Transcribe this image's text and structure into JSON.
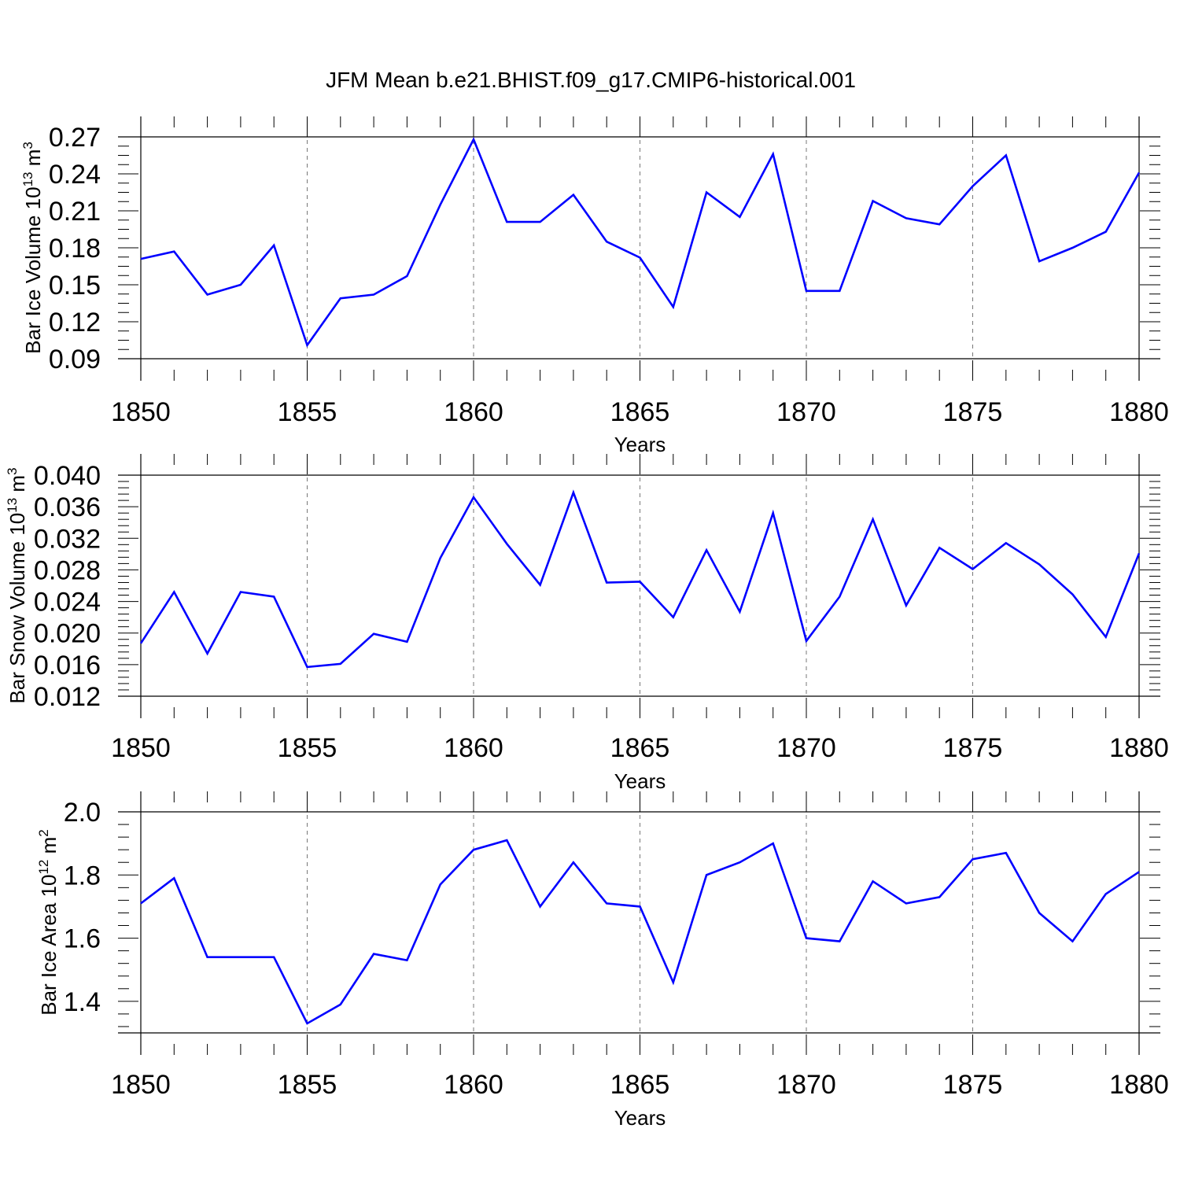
{
  "title": "JFM Mean b.e21.BHIST.f09_g17.CMIP6-historical.001",
  "line_color": "#0000ff",
  "chart_data": [
    {
      "type": "line",
      "xlabel": "Years",
      "ylabel": {
        "prefix": "Bar Ice Volume 10",
        "exp": "13",
        "unit": " m",
        "unit_exp": "3"
      },
      "xlim": [
        1850,
        1880
      ],
      "ylim": [
        0.09,
        0.27
      ],
      "xticks": [
        "1850",
        "1855",
        "1860",
        "1865",
        "1870",
        "1875",
        "1880"
      ],
      "yticks": [
        "0.09",
        "0.12",
        "0.15",
        "0.18",
        "0.21",
        "0.24",
        "0.27"
      ],
      "x": [
        1850,
        1851,
        1852,
        1853,
        1854,
        1855,
        1856,
        1857,
        1858,
        1859,
        1860,
        1861,
        1862,
        1863,
        1864,
        1865,
        1866,
        1867,
        1868,
        1869,
        1870,
        1871,
        1872,
        1873,
        1874,
        1875,
        1876,
        1877,
        1878,
        1879,
        1880
      ],
      "series": [
        {
          "values": [
            0.171,
            0.177,
            0.142,
            0.15,
            0.182,
            0.101,
            0.139,
            0.142,
            0.157,
            0.215,
            0.268,
            0.201,
            0.201,
            0.223,
            0.185,
            0.172,
            0.132,
            0.225,
            0.205,
            0.256,
            0.145,
            0.145,
            0.218,
            0.204,
            0.199,
            0.23,
            0.255,
            0.169,
            0.18,
            0.193,
            0.241
          ]
        }
      ]
    },
    {
      "type": "line",
      "xlabel": "Years",
      "ylabel": {
        "prefix": "Bar Snow Volume 10",
        "exp": "13",
        "unit": " m",
        "unit_exp": "3"
      },
      "xlim": [
        1850,
        1880
      ],
      "ylim": [
        0.012,
        0.04
      ],
      "xticks": [
        "1850",
        "1855",
        "1860",
        "1865",
        "1870",
        "1875",
        "1880"
      ],
      "yticks": [
        "0.012",
        "0.016",
        "0.020",
        "0.024",
        "0.028",
        "0.032",
        "0.036",
        "0.040"
      ],
      "x": [
        1850,
        1851,
        1852,
        1853,
        1854,
        1855,
        1856,
        1857,
        1858,
        1859,
        1860,
        1861,
        1862,
        1863,
        1864,
        1865,
        1866,
        1867,
        1868,
        1869,
        1870,
        1871,
        1872,
        1873,
        1874,
        1875,
        1876,
        1877,
        1878,
        1879,
        1880
      ],
      "series": [
        {
          "values": [
            0.0187,
            0.0252,
            0.0174,
            0.0252,
            0.0246,
            0.0157,
            0.0161,
            0.0199,
            0.0189,
            0.0295,
            0.0372,
            0.0313,
            0.0261,
            0.0378,
            0.0264,
            0.0265,
            0.022,
            0.0305,
            0.0227,
            0.0352,
            0.019,
            0.0246,
            0.0344,
            0.0235,
            0.0308,
            0.0281,
            0.0314,
            0.0287,
            0.0249,
            0.0195,
            0.0301
          ]
        }
      ]
    },
    {
      "type": "line",
      "xlabel": "Years",
      "ylabel": {
        "prefix": "Bar Ice Area 10",
        "exp": "12",
        "unit": " m",
        "unit_exp": "2"
      },
      "xlim": [
        1850,
        1880
      ],
      "ylim": [
        1.3,
        2.0
      ],
      "xticks": [
        "1850",
        "1855",
        "1860",
        "1865",
        "1870",
        "1875",
        "1880"
      ],
      "yticks": [
        "1.4",
        "1.6",
        "1.8",
        "2.0"
      ],
      "x": [
        1850,
        1851,
        1852,
        1853,
        1854,
        1855,
        1856,
        1857,
        1858,
        1859,
        1860,
        1861,
        1862,
        1863,
        1864,
        1865,
        1866,
        1867,
        1868,
        1869,
        1870,
        1871,
        1872,
        1873,
        1874,
        1875,
        1876,
        1877,
        1878,
        1879,
        1880
      ],
      "series": [
        {
          "values": [
            1.71,
            1.79,
            1.54,
            1.54,
            1.54,
            1.33,
            1.39,
            1.55,
            1.53,
            1.77,
            1.88,
            1.91,
            1.7,
            1.84,
            1.71,
            1.7,
            1.46,
            1.8,
            1.84,
            1.9,
            1.6,
            1.59,
            1.78,
            1.71,
            1.73,
            1.85,
            1.87,
            1.68,
            1.59,
            1.74,
            1.81
          ]
        }
      ]
    }
  ]
}
